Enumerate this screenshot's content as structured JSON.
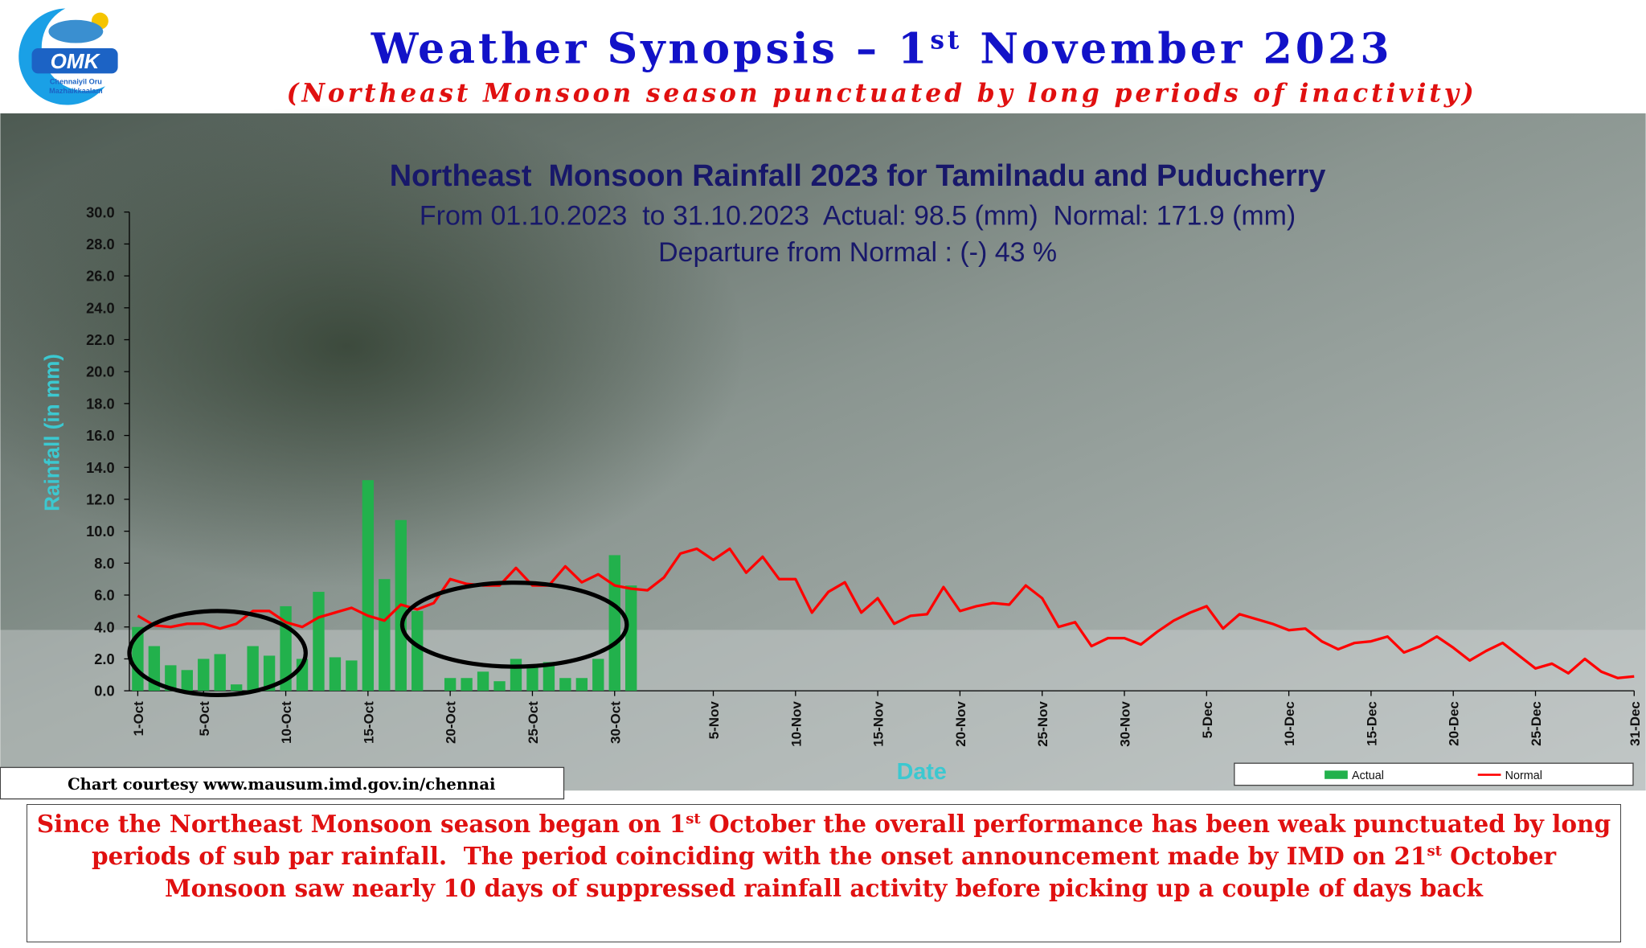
{
  "logo": {
    "mark": "OMK",
    "line1": "Chennaiyil Oru",
    "line2": "Mazhaikkaalam"
  },
  "header": {
    "title": [
      "Weather Synopsis – 1",
      "st",
      " November 2023"
    ],
    "subtitle": "(Northeast Monsoon season punctuated by long periods of inactivity)"
  },
  "summary": [
    "Since the Northeast Monsoon season began on 1",
    "st",
    " October the overall performance has been weak punctuated by long periods of sub par rainfall.  The period coinciding with the onset announcement made by IMD on 21",
    "st",
    " October Monsoon saw nearly 10 days of suppressed rainfall activity before picking up a couple of days back"
  ],
  "chart_data": {
    "type": "bar",
    "title": "Northeast  Monsoon Rainfall 2023 for Tamilnadu and Puducherry",
    "subtitle": "From 01.10.2023  to 31.10.2023  Actual: 98.5 (mm)  Normal: 171.9 (mm)",
    "annotation": "Departure from Normal : (-) 43 %",
    "y_label": "Rainfall (in mm)",
    "x_label": "Date",
    "courtesy": "Chart courtesy www.mausum.imd.gov.in/chennai",
    "legend": "bottom-right",
    "categories": [
      "1-Oct",
      null,
      null,
      null,
      "5-Oct",
      null,
      null,
      null,
      null,
      "10-Oct",
      null,
      null,
      null,
      null,
      "15-Oct",
      null,
      null,
      null,
      null,
      "20-Oct",
      null,
      null,
      null,
      null,
      "25-Oct",
      null,
      null,
      null,
      null,
      "30-Oct",
      null,
      null,
      null,
      null,
      null,
      "5-Nov",
      null,
      null,
      null,
      null,
      "10-Nov",
      null,
      null,
      null,
      null,
      "15-Nov",
      null,
      null,
      null,
      null,
      "20-Nov",
      null,
      null,
      null,
      null,
      "25-Nov",
      null,
      null,
      null,
      null,
      "30-Nov",
      null,
      null,
      null,
      null,
      "5-Dec",
      null,
      null,
      null,
      null,
      "10-Dec",
      null,
      null,
      null,
      null,
      "15-Dec",
      null,
      null,
      null,
      null,
      "20-Dec",
      null,
      null,
      null,
      null,
      "25-Dec",
      null,
      null,
      null,
      null,
      null,
      "31-Dec"
    ],
    "series": [
      {
        "name": "Actual",
        "type": "bar",
        "color": "#22b14c",
        "values": [
          4.0,
          2.8,
          1.6,
          1.3,
          2.0,
          2.3,
          0.4,
          2.8,
          2.2,
          5.3,
          2.0,
          6.2,
          2.1,
          1.9,
          13.2,
          7.0,
          10.7,
          5.0,
          0,
          0.8,
          0.8,
          1.2,
          0.6,
          2.0,
          1.6,
          1.8,
          0.8,
          0.8,
          2.0,
          8.5,
          6.6,
          null,
          null,
          null,
          null,
          null,
          null,
          null,
          null,
          null,
          null,
          null,
          null,
          null,
          null,
          null,
          null,
          null,
          null,
          null,
          null,
          null,
          null,
          null,
          null,
          null,
          null,
          null,
          null,
          null,
          null,
          null,
          null,
          null,
          null,
          null,
          null,
          null,
          null,
          null,
          null,
          null,
          null,
          null,
          null,
          null,
          null,
          null,
          null,
          null,
          null,
          null,
          null,
          null,
          null,
          null,
          null,
          null,
          null,
          null,
          null,
          null
        ]
      },
      {
        "name": "Normal",
        "type": "line",
        "color": "#ff0000",
        "values": [
          4.7,
          4.1,
          4.0,
          4.2,
          4.2,
          3.9,
          4.2,
          5.0,
          5.0,
          4.3,
          4.0,
          4.6,
          4.9,
          5.2,
          4.7,
          4.4,
          5.4,
          5.1,
          5.5,
          7.0,
          6.7,
          6.6,
          6.6,
          7.7,
          6.6,
          6.6,
          7.8,
          6.8,
          7.3,
          6.6,
          6.4,
          6.3,
          7.1,
          8.6,
          8.9,
          8.2,
          8.9,
          7.4,
          8.4,
          7.0,
          7.0,
          4.9,
          6.2,
          6.8,
          4.9,
          5.8,
          4.2,
          4.7,
          4.8,
          6.5,
          5.0,
          5.3,
          5.5,
          5.4,
          6.6,
          5.8,
          4.0,
          4.3,
          2.8,
          3.3,
          3.3,
          2.9,
          3.7,
          4.4,
          4.9,
          5.3,
          3.9,
          4.8,
          4.5,
          4.2,
          3.8,
          3.9,
          3.1,
          2.6,
          3.0,
          3.1,
          3.4,
          2.4,
          2.8,
          3.4,
          2.7,
          1.9,
          2.5,
          3.0,
          2.2,
          1.4,
          1.7,
          1.1,
          2.0,
          1.2,
          0.8,
          0.9
        ]
      }
    ],
    "ylim": [
      0,
      30
    ],
    "yticks": [
      {
        "value": 0,
        "label": "0.0"
      },
      {
        "value": 2,
        "label": "2.0"
      },
      {
        "value": 4,
        "label": "4.0"
      },
      {
        "value": 6,
        "label": "6.0"
      },
      {
        "value": 8,
        "label": "8.0"
      },
      {
        "value": 10,
        "label": "10.0"
      },
      {
        "value": 12,
        "label": "12.0"
      },
      {
        "value": 14,
        "label": "14.0"
      },
      {
        "value": 16,
        "label": "16.0"
      },
      {
        "value": 18,
        "label": "18.0"
      },
      {
        "value": 20,
        "label": "20.0"
      },
      {
        "value": 22,
        "label": "22.0"
      },
      {
        "value": 24,
        "label": "24.0"
      },
      {
        "value": 26,
        "label": "26.0"
      },
      {
        "value": 28,
        "label": "28.0"
      },
      {
        "value": 30,
        "label": "30.0"
      }
    ],
    "grid": false
  }
}
